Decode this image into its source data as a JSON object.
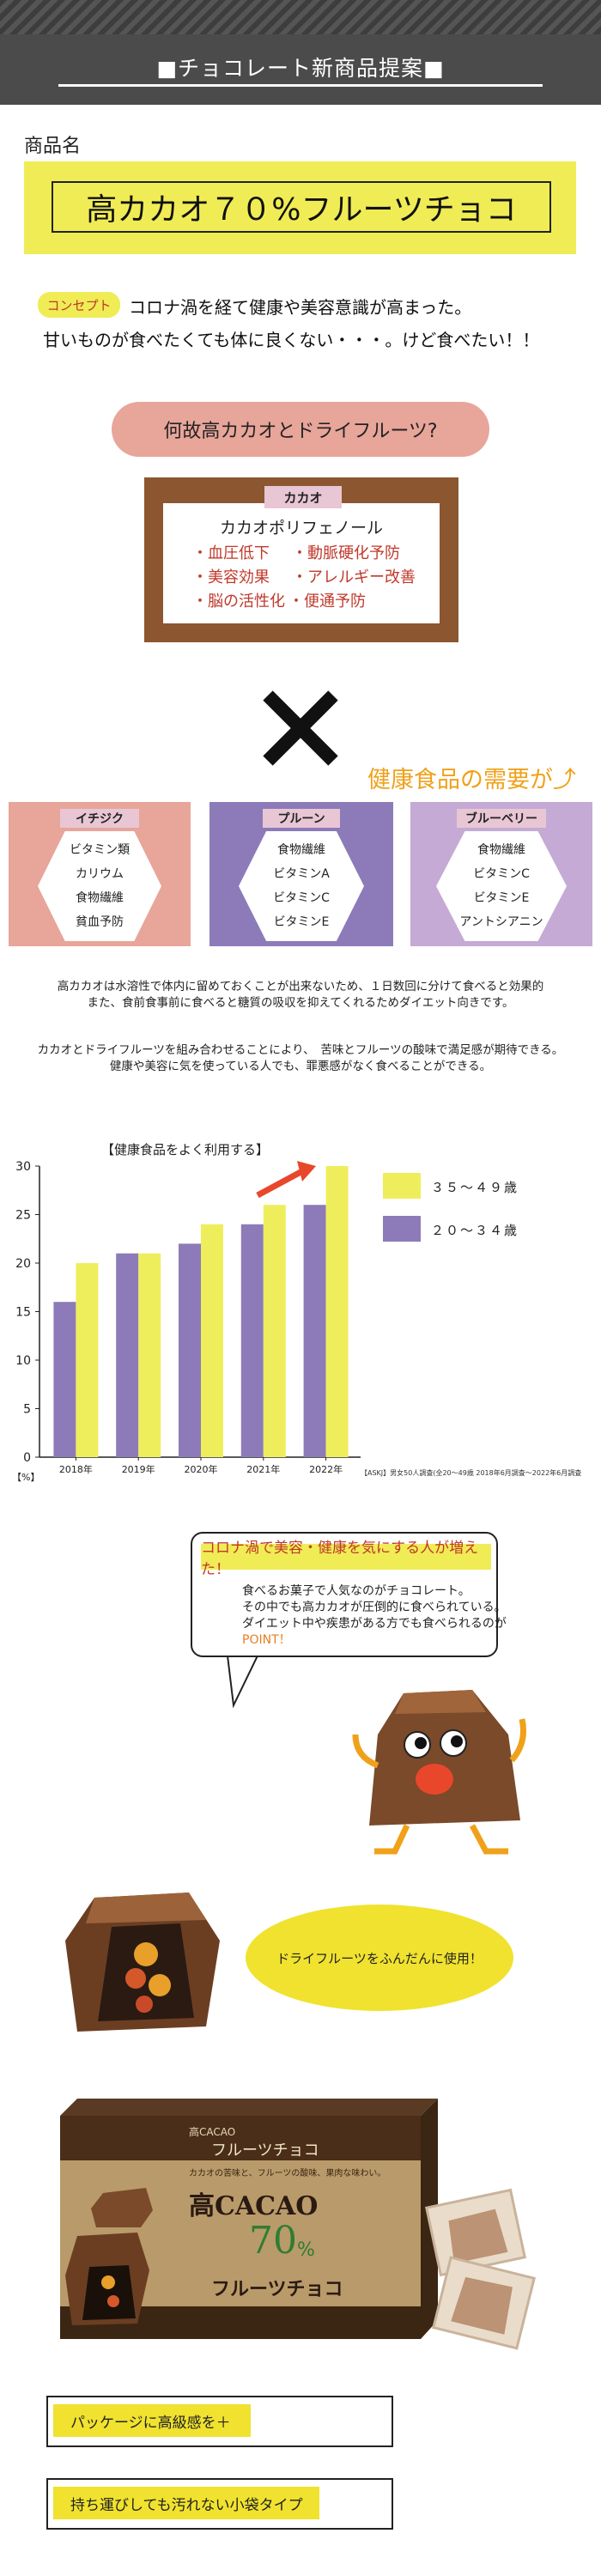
{
  "header": {
    "title": "■チョコレート新商品提案■"
  },
  "product": {
    "label": "商品名",
    "name": "高カカオ７０%フルーツチョコ"
  },
  "concept": {
    "badge": "コンセプト",
    "line1": "コロナ渦を経て健康や美容意識が高まった。",
    "line2": "甘いものが食べたくても体に良くない・・・。けど食べたい！！"
  },
  "why": "何故高カカオとドライフルーツ?",
  "cacao": {
    "tag": "カカオ",
    "title": "カカオポリフェノール",
    "benefits": [
      "・血圧低下",
      "・動脈硬化予防",
      "・美容効果",
      "・アレルギー改善",
      "・脳の活性化",
      "・便通予防"
    ]
  },
  "demand": "健康食品の需要が⤴",
  "fruits": [
    {
      "name": "イチジク",
      "color": "#e8a59a",
      "items": [
        "ビタミン類",
        "カリウム",
        "食物繊維",
        "貧血予防"
      ]
    },
    {
      "name": "プルーン",
      "color": "#8c7bb8",
      "items": [
        "食物繊維",
        "ビタミンA",
        "ビタミンC",
        "ビタミンE"
      ]
    },
    {
      "name": "ブルーベリー",
      "color": "#c4aad4",
      "items": [
        "食物繊維",
        "ビタミンC",
        "ビタミンE",
        "アントシアニン"
      ]
    }
  ],
  "paragraph1": [
    "高カカオは水溶性で体内に留めておくことが出来ないため、１日数回に分けて食べると効果的",
    "また、食前食事前に食べると糖質の吸収を抑えてくれるためダイエット向きです。"
  ],
  "paragraph2": [
    "カカオとドライフルーツを組み合わせることにより、　苦味とフルーツの酸味で満足感が期待できる。",
    "健康や美容に気を使っている人でも、罪悪感がなく食べることができる。"
  ],
  "chart_data": {
    "type": "bar",
    "title": "【健康食品をよく利用する】",
    "categories": [
      "2018年",
      "2019年",
      "2020年",
      "2021年",
      "2022年"
    ],
    "series": [
      {
        "name": "２０～３４歳",
        "color": "#8c7bb8",
        "values": [
          16,
          21,
          22,
          24,
          26
        ]
      },
      {
        "name": "３５～４９歳",
        "color": "#eeee5c",
        "values": [
          20,
          21,
          24,
          26,
          30
        ]
      }
    ],
    "ylim": [
      0,
      30
    ],
    "yticks": [
      0,
      5,
      10,
      15,
      20,
      25,
      30
    ],
    "ylabel": "【%】",
    "source": "【ASKJ】男女50人調査(全20～49歳 2018年6月調査～2022年6月調査"
  },
  "speech": {
    "title": "コロナ渦で美容・健康を気にする人が増えた！",
    "lines": [
      "食べるお菓子で人気なのがチョコレート。",
      "その中でも高カカオが圧倒的に食べられている。",
      "ダイエット中や疾患がある方でも食べられるのが"
    ],
    "point": "POINT！"
  },
  "dried_fruit": "ドライフルーツをふんだんに使用！",
  "package": {
    "brand": "高CACAO",
    "script": "フルーツチョコ",
    "tagline": "カカオの苦味と、フルーツの酸味、果肉な味わい。",
    "big1": "高CACAO",
    "big2": "70",
    "big2_unit": "%",
    "big3": "フルーツチョコ"
  },
  "notes": [
    "パッケージに高級感を＋",
    "持ち運びしても汚れない小袋タイプ"
  ]
}
